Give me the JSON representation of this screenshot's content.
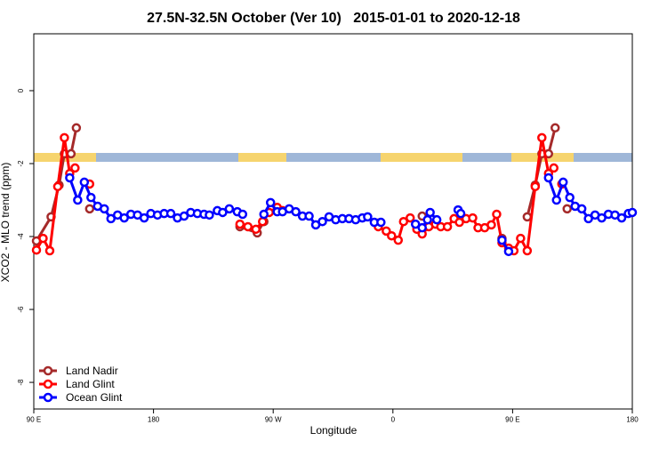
{
  "chart_data": {
    "type": "line",
    "title": "27.5N-32.5N October (Ver 10)   2015-01-01 to 2020-12-18",
    "xlabel": "Longitude",
    "ylabel": "XCO2 - MLO trend (ppm)",
    "xlim": [
      90,
      540
    ],
    "ylim": [
      -8.73,
      1.56
    ],
    "xticks": [
      {
        "value": 90,
        "label": "90 E"
      },
      180,
      {
        "value": 270,
        "label": "90 W"
      },
      {
        "value": 360,
        "label": "0"
      },
      {
        "value": 450,
        "label": "90 E"
      },
      {
        "value": 540,
        "label": "180"
      }
    ],
    "yticks": [
      0,
      -2,
      -4,
      -6,
      -8
    ],
    "legend_loc": "bottomleft",
    "series": [
      {
        "name": "Land Nadir",
        "color": "#a52a2a",
        "x": [
          92,
          103,
          109,
          113,
          118,
          122,
          null,
          132,
          null,
          245,
          258,
          263,
          null,
          349,
          null,
          382,
          null,
          442,
          null,
          461,
          467,
          472,
          477,
          482,
          null,
          491
        ],
        "values": [
          -4.12,
          -3.46,
          -2.59,
          -1.73,
          -1.73,
          -1.02,
          null,
          -3.24,
          null,
          -3.73,
          -3.9,
          -3.59,
          null,
          -3.63,
          null,
          -3.44,
          null,
          -4.05,
          null,
          -3.46,
          -2.59,
          -1.73,
          -1.73,
          -1.02,
          null,
          -3.24
        ]
      },
      {
        "name": "Land Glint",
        "color": "#ff0000",
        "x": [
          92,
          97,
          102,
          108,
          113,
          117,
          121,
          null,
          132,
          null,
          245,
          251,
          257,
          262,
          267,
          273,
          277,
          null,
          349,
          355,
          359,
          364,
          368,
          373,
          378,
          382,
          387,
          392,
          396,
          401,
          406,
          410,
          415,
          420,
          424,
          429,
          434,
          438,
          442,
          447,
          451,
          456,
          461,
          467,
          472,
          477,
          481,
          null,
          487
        ],
        "values": [
          -4.37,
          -4.05,
          -4.39,
          -2.63,
          -1.29,
          -2.27,
          -2.12,
          null,
          -2.56,
          null,
          -3.66,
          -3.73,
          -3.8,
          -3.59,
          -3.34,
          -3.2,
          -3.29,
          null,
          -3.73,
          -3.85,
          -3.98,
          -4.1,
          -3.59,
          -3.49,
          -3.8,
          -3.93,
          -3.73,
          -3.66,
          -3.73,
          -3.73,
          -3.51,
          -3.61,
          -3.51,
          -3.49,
          -3.76,
          -3.76,
          -3.68,
          -3.39,
          -4.17,
          -4.32,
          -4.39,
          -4.05,
          -4.39,
          -2.63,
          -1.29,
          -2.27,
          -2.12,
          null,
          -2.56
        ]
      },
      {
        "name": "Ocean Glint",
        "color": "#0000ff",
        "x": [
          117,
          123,
          128,
          133,
          138,
          143,
          148,
          153,
          158,
          163,
          168,
          173,
          178,
          183,
          188,
          193,
          198,
          203,
          208,
          213,
          218,
          222,
          228,
          232,
          237,
          243,
          247,
          null,
          263,
          268,
          273,
          277,
          282,
          287,
          292,
          297,
          302,
          307,
          312,
          317,
          322,
          327,
          332,
          337,
          341,
          346,
          351,
          null,
          377,
          382,
          386,
          388,
          393,
          null,
          409,
          411,
          null,
          442,
          447,
          null,
          477,
          483,
          488,
          493,
          497,
          502,
          507,
          512,
          517,
          522,
          527,
          532,
          537,
          540
        ],
        "values": [
          -2.39,
          -3.0,
          -2.51,
          -2.93,
          -3.17,
          -3.24,
          -3.51,
          -3.41,
          -3.49,
          -3.39,
          -3.41,
          -3.49,
          -3.37,
          -3.41,
          -3.37,
          -3.37,
          -3.49,
          -3.44,
          -3.34,
          -3.37,
          -3.39,
          -3.41,
          -3.29,
          -3.34,
          -3.24,
          -3.32,
          -3.39,
          null,
          -3.39,
          -3.07,
          -3.32,
          -3.32,
          -3.24,
          -3.32,
          -3.44,
          -3.44,
          -3.68,
          -3.59,
          -3.46,
          -3.54,
          -3.51,
          -3.51,
          -3.54,
          -3.49,
          -3.46,
          -3.61,
          -3.61,
          null,
          -3.66,
          -3.76,
          -3.54,
          -3.34,
          -3.54,
          null,
          -3.27,
          -3.37,
          null,
          -4.1,
          -4.41,
          null,
          -2.39,
          -3.0,
          -2.51,
          -2.93,
          -3.17,
          -3.24,
          -3.51,
          -3.41,
          -3.49,
          -3.39,
          -3.41,
          -3.49,
          -3.37,
          -3.34
        ]
      }
    ]
  }
}
